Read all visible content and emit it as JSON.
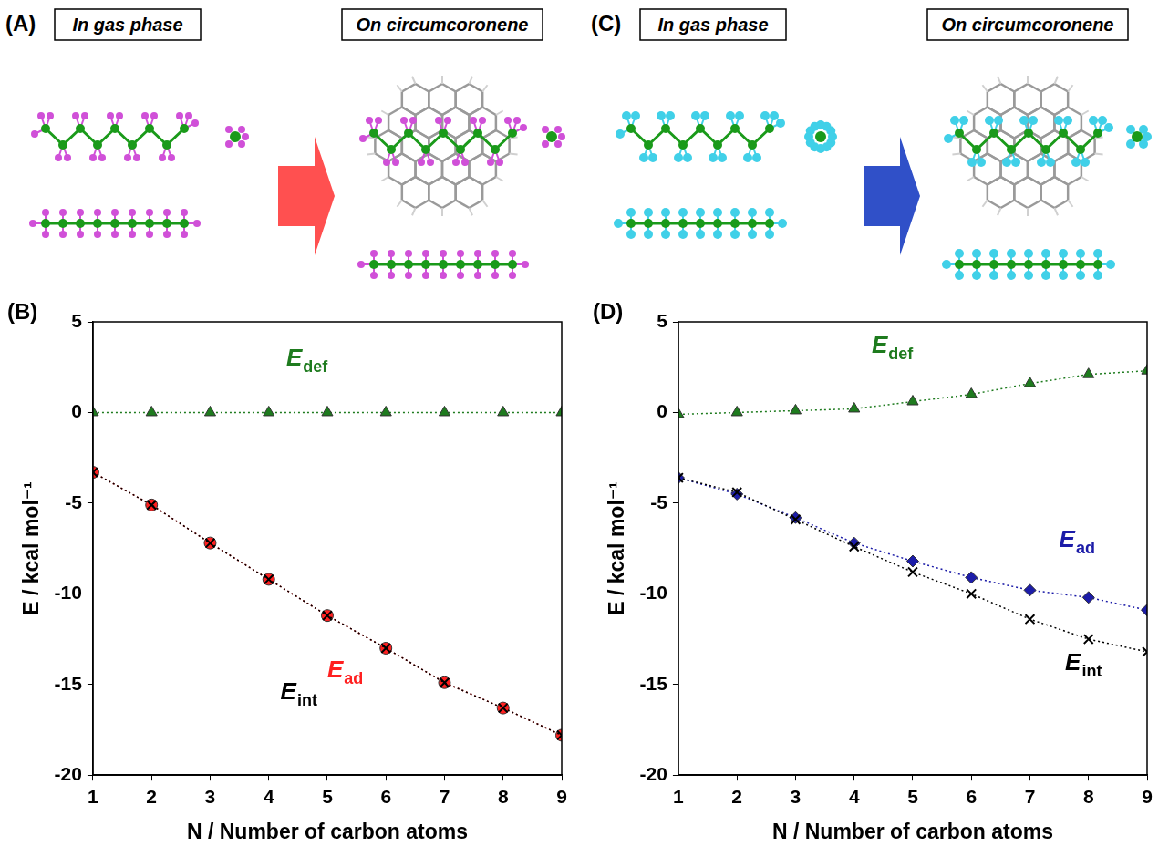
{
  "schemes": [
    {
      "panel_label": "(A)",
      "left_title": "In gas phase",
      "right_title": "On circumcoronene"
    },
    {
      "panel_label": "(C)",
      "left_title": "In gas phase",
      "right_title": "On circumcoronene"
    }
  ],
  "chart_data": [
    {
      "type": "line",
      "panel_label": "(B)",
      "x_label": "N / Number of carbon atoms",
      "y_label": "E / kcal mol⁻¹",
      "x": [
        1,
        2,
        3,
        4,
        5,
        6,
        7,
        8,
        9
      ],
      "xlim": [
        1,
        9
      ],
      "xticks": [
        1,
        2,
        3,
        4,
        5,
        6,
        7,
        8,
        9
      ],
      "ylim": [
        -20,
        5
      ],
      "yticks": [
        -20,
        -15,
        -10,
        -5,
        0,
        5
      ],
      "grid": false,
      "line_style": "dotted",
      "series": [
        {
          "name": "Edef",
          "color": "#1e7b1e",
          "marker": "triangle",
          "values": [
            0,
            0,
            0,
            0,
            0,
            0,
            0,
            0,
            0
          ]
        },
        {
          "name": "Ead",
          "color": "#ff2020",
          "marker": "circle",
          "values": [
            -3.3,
            -5.1,
            -7.2,
            -9.2,
            -11.2,
            -13.0,
            -14.9,
            -16.3,
            -17.8
          ]
        },
        {
          "name": "Eint",
          "color": "#000000",
          "marker": "cross",
          "values": [
            -3.3,
            -5.1,
            -7.2,
            -9.2,
            -11.2,
            -13.0,
            -14.9,
            -16.3,
            -17.8
          ]
        }
      ]
    },
    {
      "type": "line",
      "panel_label": "(D)",
      "x_label": "N / Number of carbon atoms",
      "y_label": "E / kcal mol⁻¹",
      "x": [
        1,
        2,
        3,
        4,
        5,
        6,
        7,
        8,
        9
      ],
      "xlim": [
        1,
        9
      ],
      "xticks": [
        1,
        2,
        3,
        4,
        5,
        6,
        7,
        8,
        9
      ],
      "ylim": [
        -20,
        5
      ],
      "yticks": [
        -20,
        -15,
        -10,
        -5,
        0,
        5
      ],
      "grid": false,
      "line_style": "dotted",
      "series": [
        {
          "name": "Edef",
          "color": "#1e7b1e",
          "marker": "triangle",
          "values": [
            -0.1,
            0.0,
            0.1,
            0.2,
            0.6,
            1.0,
            1.6,
            2.1,
            2.3
          ]
        },
        {
          "name": "Ead",
          "color": "#1c1ca8",
          "marker": "diamond",
          "values": [
            -3.6,
            -4.5,
            -5.8,
            -7.2,
            -8.2,
            -9.1,
            -9.8,
            -10.2,
            -10.9
          ]
        },
        {
          "name": "Eint",
          "color": "#000000",
          "marker": "cross",
          "values": [
            -3.6,
            -4.4,
            -5.9,
            -7.4,
            -8.8,
            -10.0,
            -11.4,
            -12.5,
            -13.2
          ]
        }
      ]
    }
  ]
}
